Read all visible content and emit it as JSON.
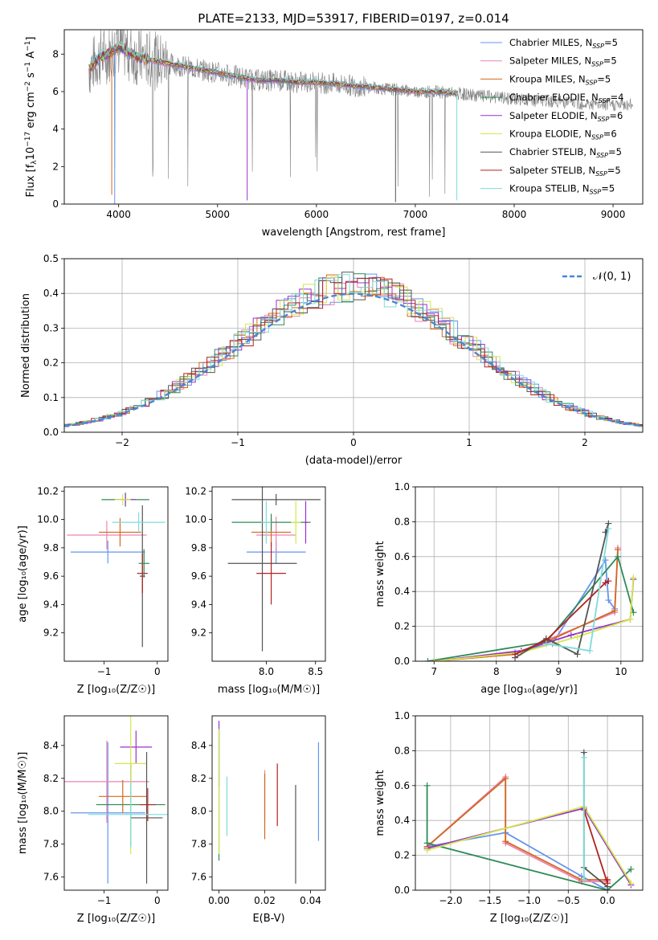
{
  "figure": {
    "title": "PLATE=2133, MJD=53917, FIBERID=0197, z=0.014"
  },
  "colors": {
    "Chabrier MILES": "#6495ed",
    "Salpeter MILES": "#ee82b4",
    "Kroupa MILES": "#d2691e",
    "Chabrier ELODIE": "#2e8b57",
    "Salpeter ELODIE": "#9932cc",
    "Kroupa ELODIE": "#d4e84a",
    "Chabrier STELIB": "#555555",
    "Salpeter STELIB": "#b22222",
    "Kroupa STELIB": "#7fdbdb",
    "data": "#808080",
    "gaussian": "#4a86d4"
  },
  "chart_data": [
    {
      "id": "spectrum",
      "type": "line",
      "xlabel": "wavelength [Angstrom, rest frame]",
      "ylabel_parts": [
        "Flux [f",
        "λ",
        "10",
        "−17",
        " erg cm",
        "−2",
        " s",
        "−1",
        " A",
        "−1",
        "]"
      ],
      "xlim": [
        3450,
        9300
      ],
      "ylim": [
        0,
        9.3
      ],
      "xticks": [
        4000,
        5000,
        6000,
        7000,
        8000,
        9000
      ],
      "yticks": [
        0,
        2,
        4,
        6,
        8
      ],
      "legend_position": "upper right",
      "legend": [
        {
          "prefix": "Chabrier MILES, N",
          "sub": "SSP",
          "suffix": "=5",
          "key": "Chabrier MILES"
        },
        {
          "prefix": "Salpeter MILES, N",
          "sub": "SSP",
          "suffix": "=5",
          "key": "Salpeter MILES"
        },
        {
          "prefix": "Kroupa MILES, N",
          "sub": "SSP",
          "suffix": "=5",
          "key": "Kroupa MILES"
        },
        {
          "prefix": "Chabrier ELODIE, N",
          "sub": "SSP",
          "suffix": "=4",
          "key": "Chabrier ELODIE"
        },
        {
          "prefix": "Salpeter ELODIE, N",
          "sub": "SSP",
          "suffix": "=6",
          "key": "Salpeter ELODIE"
        },
        {
          "prefix": "Kroupa ELODIE, N",
          "sub": "SSP",
          "suffix": "=6",
          "key": "Kroupa ELODIE"
        },
        {
          "prefix": "Chabrier STELIB, N",
          "sub": "SSP",
          "suffix": "=5",
          "key": "Chabrier STELIB"
        },
        {
          "prefix": "Salpeter STELIB, N",
          "sub": "SSP",
          "suffix": "=5",
          "key": "Salpeter STELIB"
        },
        {
          "prefix": "Kroupa STELIB, N",
          "sub": "SSP",
          "suffix": "=5",
          "key": "Kroupa STELIB"
        }
      ],
      "continuum": {
        "x": [
          3700,
          3800,
          3900,
          4000,
          4100,
          4200,
          4400,
          4600,
          4800,
          5000,
          5200,
          5400,
          5600,
          5800,
          6000,
          6200,
          6400,
          6600,
          6800,
          7000,
          7200,
          7400,
          7600,
          7800,
          8000,
          8200,
          8400,
          8600,
          8800,
          9000,
          9200
        ],
        "y": [
          7.2,
          7.8,
          8.0,
          8.4,
          8.1,
          7.8,
          7.6,
          7.4,
          7.2,
          7.0,
          6.8,
          6.6,
          6.6,
          6.5,
          6.5,
          6.4,
          6.3,
          6.2,
          6.1,
          6.0,
          6.0,
          5.9,
          5.8,
          5.7,
          5.6,
          5.5,
          5.5,
          5.4,
          5.3,
          5.3,
          5.3
        ],
        "model_end_x": 7430,
        "spikes": [
          [
            3960,
            0
          ],
          [
            3930,
            0.5
          ],
          [
            5300,
            0.2
          ],
          [
            6800,
            0.1
          ],
          [
            7420,
            0.2
          ]
        ]
      }
    },
    {
      "id": "residuals",
      "type": "line",
      "xlabel": "(data-model)/error",
      "ylabel": "Normed distribution",
      "xlim": [
        -2.5,
        2.5
      ],
      "ylim": [
        0,
        0.5
      ],
      "xticks": [
        -2,
        -1,
        0,
        1,
        2
      ],
      "yticks": [
        0.0,
        0.1,
        0.2,
        0.3,
        0.4,
        0.5
      ],
      "grid": true,
      "legend_label": "𝒩(0, 1)",
      "legend_position": "upper right",
      "gaussian": {
        "mu": 0,
        "sigma": 1
      }
    },
    {
      "id": "age-vs-z",
      "type": "scatter",
      "xlabel": "Z [log₁₀(Z/Z☉)]",
      "ylabel": "age  [log₁₀(age/yr)]",
      "xlim": [
        -1.75,
        0.2
      ],
      "ylim": [
        9.0,
        10.23
      ],
      "xticks": [
        -1,
        0
      ],
      "yticks": [
        9.2,
        9.4,
        9.6,
        9.8,
        10.0,
        10.2
      ],
      "points": [
        {
          "key": "Chabrier MILES",
          "x": -0.93,
          "xerr": 0.7,
          "y": 9.77,
          "yerr": 0.08
        },
        {
          "key": "Salpeter MILES",
          "x": -0.95,
          "xerr": 0.75,
          "y": 9.89,
          "yerr": 0.1
        },
        {
          "key": "Kroupa MILES",
          "x": -0.7,
          "xerr": 0.4,
          "y": 9.91,
          "yerr": 0.1
        },
        {
          "key": "Chabrier ELODIE",
          "x": -0.6,
          "xerr": 0.45,
          "y": 10.14,
          "yerr": 0.05
        },
        {
          "key": "Salpeter ELODIE",
          "x": -0.6,
          "xerr": 0.2,
          "y": 10.14,
          "yerr": 0.04
        },
        {
          "key": "Kroupa ELODIE",
          "x": -0.65,
          "xerr": 0.15,
          "y": 10.14,
          "yerr": 0.04
        },
        {
          "key": "Chabrier STELIB",
          "x": -0.28,
          "xerr": 0.05,
          "y": 9.6,
          "yerr": 0.5
        },
        {
          "key": "Salpeter STELIB",
          "x": -0.28,
          "xerr": 0.1,
          "y": 9.62,
          "yerr": 0.14
        },
        {
          "key": "Kroupa STELIB",
          "x": -0.35,
          "xerr": 0.5,
          "y": 9.98,
          "yerr": 0.07
        },
        {
          "key": "Chabrier ELODIE",
          "x": -0.25,
          "xerr": 0.1,
          "y": 9.69,
          "yerr": 0.1
        }
      ]
    },
    {
      "id": "age-vs-mass",
      "type": "scatter",
      "xlabel": "mass [log₁₀(M/M☉)]",
      "ylabel": "",
      "xlim": [
        7.45,
        8.6
      ],
      "ylim": [
        9.0,
        10.23
      ],
      "xticks": [
        8.0,
        8.5
      ],
      "yticks": [
        9.2,
        9.4,
        9.6,
        9.8,
        10.0,
        10.2
      ],
      "points": [
        {
          "key": "Chabrier MILES",
          "x": 8.1,
          "xerr": 0.3,
          "y": 9.77,
          "yerr": 0.08
        },
        {
          "key": "Salpeter MILES",
          "x": 8.1,
          "xerr": 0.2,
          "y": 9.89,
          "yerr": 0.13
        },
        {
          "key": "Kroupa MILES",
          "x": 8.05,
          "xerr": 0.2,
          "y": 9.91,
          "yerr": 0.1
        },
        {
          "key": "Chabrier ELODIE",
          "x": 8.05,
          "xerr": 0.4,
          "y": 9.98,
          "yerr": 0.06
        },
        {
          "key": "Salpeter ELODIE",
          "x": 8.4,
          "xerr": 0.02,
          "y": 9.98,
          "yerr": 0.15
        },
        {
          "key": "Kroupa ELODIE",
          "x": 8.3,
          "xerr": 0.05,
          "y": 9.98,
          "yerr": 0.15
        },
        {
          "key": "Chabrier STELIB",
          "x": 7.96,
          "xerr": 0.35,
          "y": 9.69,
          "yerr": 0.62
        },
        {
          "key": "Salpeter STELIB",
          "x": 8.05,
          "xerr": 0.15,
          "y": 9.62,
          "yerr": 0.22
        },
        {
          "key": "Kroupa STELIB",
          "x": 8.0,
          "xerr": 0.05,
          "y": 9.98,
          "yerr": 0.15
        },
        {
          "key": "Chabrier STELIB",
          "x": 8.1,
          "xerr": 0.45,
          "y": 10.14,
          "yerr": 0.04
        }
      ]
    },
    {
      "id": "weight-vs-age",
      "type": "line",
      "xlabel": "age  [log₁₀(age/yr)]",
      "ylabel": "mass weight",
      "xlim": [
        6.7,
        10.35
      ],
      "ylim": [
        0,
        1.0
      ],
      "xticks": [
        7,
        8,
        9,
        10
      ],
      "yticks": [
        0.0,
        0.2,
        0.4,
        0.6,
        0.8,
        1.0
      ],
      "grid": true,
      "series": [
        {
          "key": "Chabrier MILES",
          "x": [
            7.0,
            8.3,
            8.9,
            9.75,
            9.8,
            9.9
          ],
          "y": [
            0.0,
            0.05,
            0.1,
            0.58,
            0.35,
            0.3
          ]
        },
        {
          "key": "Salpeter MILES",
          "x": [
            7.0,
            8.3,
            8.8,
            9.9,
            9.95
          ],
          "y": [
            0.0,
            0.04,
            0.12,
            0.28,
            0.65
          ]
        },
        {
          "key": "Kroupa MILES",
          "x": [
            7.0,
            8.3,
            8.8,
            9.9,
            9.95
          ],
          "y": [
            0.0,
            0.04,
            0.11,
            0.29,
            0.64
          ]
        },
        {
          "key": "Chabrier ELODIE",
          "x": [
            6.9,
            8.8,
            9.95,
            10.2
          ],
          "y": [
            0.0,
            0.11,
            0.6,
            0.28
          ]
        },
        {
          "key": "Salpeter ELODIE",
          "x": [
            7.0,
            8.4,
            9.2,
            10.15,
            10.2
          ],
          "y": [
            0.0,
            0.06,
            0.15,
            0.24,
            0.47
          ]
        },
        {
          "key": "Kroupa ELODIE",
          "x": [
            7.0,
            8.4,
            9.3,
            10.15,
            10.2
          ],
          "y": [
            0.0,
            0.05,
            0.14,
            0.24,
            0.48
          ]
        },
        {
          "key": "Chabrier STELIB",
          "x": [
            8.3,
            8.8,
            9.3,
            9.8,
            9.75
          ],
          "y": [
            0.02,
            0.13,
            0.04,
            0.79,
            0.74
          ]
        },
        {
          "key": "Salpeter STELIB",
          "x": [
            8.3,
            8.8,
            9.75,
            9.8
          ],
          "y": [
            0.04,
            0.12,
            0.45,
            0.46
          ]
        },
        {
          "key": "Kroupa STELIB",
          "x": [
            8.8,
            9.5,
            9.8
          ],
          "y": [
            0.1,
            0.06,
            0.76
          ]
        }
      ]
    },
    {
      "id": "mass-vs-z",
      "type": "scatter",
      "xlabel": "Z [log₁₀(Z/Z☉)]",
      "ylabel": "mass [log₁₀(M/M☉)]",
      "xlim": [
        -1.75,
        0.2
      ],
      "ylim": [
        7.52,
        8.58
      ],
      "xticks": [
        -1,
        0
      ],
      "yticks": [
        7.6,
        7.8,
        8.0,
        8.2,
        8.4
      ],
      "points": [
        {
          "key": "Chabrier MILES",
          "x": -0.93,
          "xerr": 0.7,
          "y": 7.99,
          "yerr": 0.43
        },
        {
          "key": "Salpeter MILES",
          "x": -0.95,
          "xerr": 0.8,
          "y": 8.18,
          "yerr": 0.25
        },
        {
          "key": "Kroupa MILES",
          "x": -0.65,
          "xerr": 0.45,
          "y": 8.09,
          "yerr": 0.1
        },
        {
          "key": "Chabrier ELODIE",
          "x": -0.5,
          "xerr": 0.65,
          "y": 8.04,
          "yerr": 0.25
        },
        {
          "key": "Salpeter ELODIE",
          "x": -0.4,
          "xerr": 0.3,
          "y": 8.39,
          "yerr": 0.1
        },
        {
          "key": "Kroupa ELODIE",
          "x": -0.5,
          "xerr": 0.3,
          "y": 8.29,
          "yerr": 0.55
        },
        {
          "key": "Chabrier STELIB",
          "x": -0.2,
          "xerr": 0.3,
          "y": 7.96,
          "yerr": 0.4
        },
        {
          "key": "Salpeter STELIB",
          "x": -0.18,
          "xerr": 0.15,
          "y": 8.04,
          "yerr": 0.1
        },
        {
          "key": "Kroupa STELIB",
          "x": -0.5,
          "xerr": 0.8,
          "y": 7.98,
          "yerr": 0.2
        }
      ]
    },
    {
      "id": "mass-vs-ebv",
      "type": "scatter",
      "xlabel": "E(B-V)",
      "ylabel": "",
      "xlim": [
        -0.003,
        0.0465
      ],
      "ylim": [
        7.52,
        8.58
      ],
      "xticks": [
        0.0,
        0.02,
        0.04
      ],
      "yticks": [
        7.6,
        7.8,
        8.0,
        8.2,
        8.4
      ],
      "points": [
        {
          "key": "Chabrier MILES",
          "x": 0.0435,
          "y": 8.12,
          "yerr": 0.3
        },
        {
          "key": "Salpeter MILES",
          "x": 0.02,
          "y": 8.1,
          "yerr": 0.15
        },
        {
          "key": "Kroupa MILES",
          "x": 0.02,
          "y": 8.03,
          "yerr": 0.2
        },
        {
          "key": "Chabrier ELODIE",
          "x": 0.0,
          "y": 8.1,
          "yerr": 0.4
        },
        {
          "key": "Salpeter ELODIE",
          "x": 0.0,
          "y": 8.35,
          "yerr": 0.2
        },
        {
          "key": "Kroupa ELODIE",
          "x": 0.0,
          "y": 8.12,
          "yerr": 0.38
        },
        {
          "key": "Chabrier STELIB",
          "x": 0.0335,
          "y": 7.86,
          "yerr": 0.3
        },
        {
          "key": "Salpeter STELIB",
          "x": 0.0255,
          "y": 8.1,
          "yerr": 0.19
        },
        {
          "key": "Kroupa STELIB",
          "x": 0.0035,
          "y": 8.03,
          "yerr": 0.18
        }
      ]
    },
    {
      "id": "weight-vs-z",
      "type": "line",
      "xlabel": "Z [log₁₀(Z/Z☉)]",
      "ylabel": "mass weight",
      "xlim": [
        -2.45,
        0.45
      ],
      "ylim": [
        0,
        1.0
      ],
      "xticks": [
        -2.0,
        -1.5,
        -1.0,
        -0.5,
        0.0
      ],
      "xtick_labels": [
        "−2.0",
        "−1.5",
        "−1.0",
        "−0.5",
        "0.0"
      ],
      "yticks": [
        0.0,
        0.2,
        0.4,
        0.6,
        0.8,
        1.0
      ],
      "grid": true,
      "series": [
        {
          "key": "Chabrier MILES",
          "x": [
            -2.3,
            -1.3,
            -0.33,
            0.0
          ],
          "y": [
            0.25,
            0.33,
            0.08,
            0.0
          ]
        },
        {
          "key": "Salpeter MILES",
          "x": [
            -2.3,
            -1.3,
            -1.3,
            -0.33,
            0.0
          ],
          "y": [
            0.25,
            0.65,
            0.27,
            0.05,
            0.05
          ]
        },
        {
          "key": "Kroupa MILES",
          "x": [
            -2.3,
            -1.3,
            -1.3,
            -0.33,
            0.0
          ],
          "y": [
            0.25,
            0.64,
            0.28,
            0.06,
            0.06
          ]
        },
        {
          "key": "Chabrier ELODIE",
          "x": [
            -2.3,
            -2.3,
            0.0,
            0.3
          ],
          "y": [
            0.6,
            0.27,
            0.0,
            0.12
          ]
        },
        {
          "key": "Salpeter ELODIE",
          "x": [
            -2.3,
            -0.3,
            0.3
          ],
          "y": [
            0.24,
            0.47,
            0.03
          ]
        },
        {
          "key": "Kroupa ELODIE",
          "x": [
            -2.3,
            -0.3,
            0.3
          ],
          "y": [
            0.23,
            0.48,
            0.04
          ]
        },
        {
          "key": "Chabrier STELIB",
          "x": [
            -0.3,
            -0.3,
            0.0
          ],
          "y": [
            0.79,
            0.13,
            0.02
          ]
        },
        {
          "key": "Salpeter STELIB",
          "x": [
            -0.3,
            0.0,
            0.0
          ],
          "y": [
            0.46,
            0.04,
            0.06
          ]
        },
        {
          "key": "Kroupa STELIB",
          "x": [
            -0.3,
            -0.3
          ],
          "y": [
            0.76,
            0.06
          ]
        }
      ]
    }
  ]
}
